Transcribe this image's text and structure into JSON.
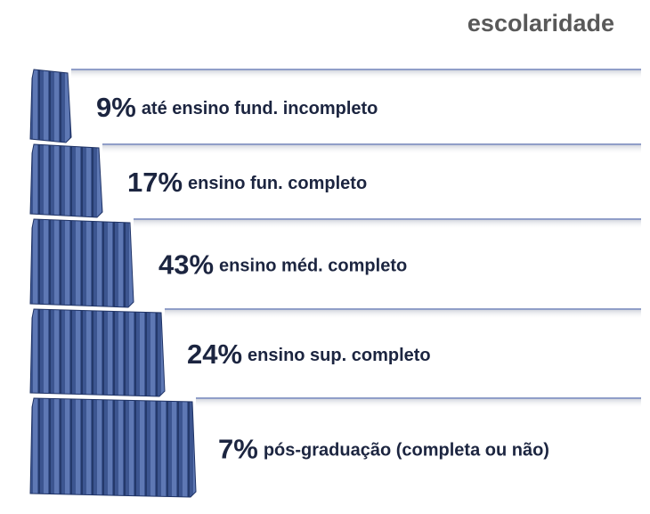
{
  "title": "escolaridade",
  "rows": [
    {
      "percent": "9%",
      "label": "até ensino fund. incompleto"
    },
    {
      "percent": "17%",
      "label": "ensino fun. completo"
    },
    {
      "percent": "43%",
      "label": "ensino méd. completo"
    },
    {
      "percent": "24%",
      "label": "ensino sup. completo"
    },
    {
      "percent": "7%",
      "label": "pós-graduação (completa ou não)"
    }
  ]
}
